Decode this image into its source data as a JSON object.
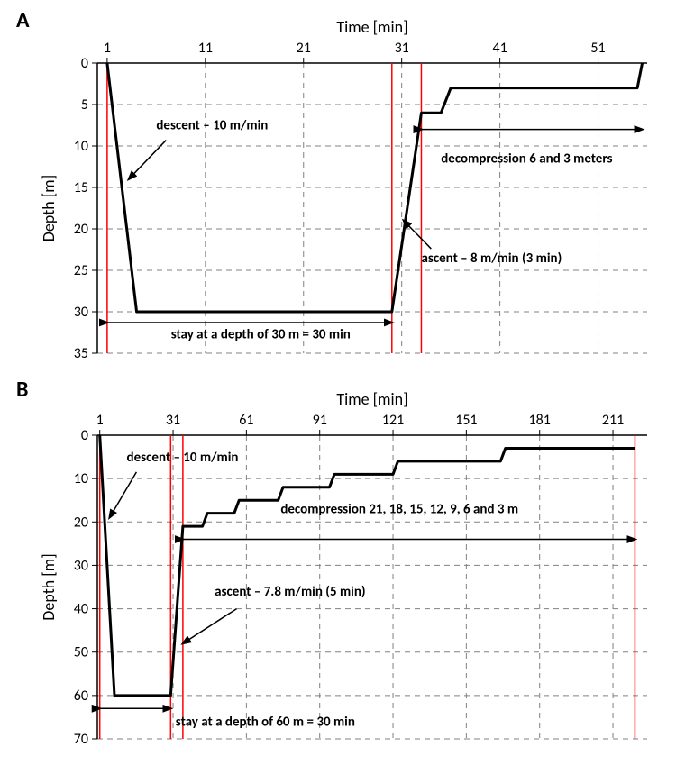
{
  "global": {
    "background_color": "#ffffff",
    "font_family": "Calibri, Arial, sans-serif",
    "grid_color": "#808080",
    "axis_color": "#000000",
    "profile_color": "#000000",
    "marker_color": "#ff0000",
    "text_color": "#000000",
    "panel_label_fontsize": 24,
    "axis_title_fontsize": 18,
    "tick_fontsize": 16,
    "annotation_fontsize": 15
  },
  "panelA": {
    "label": "A",
    "x_title": "Time [min]",
    "y_title": "Depth [m]",
    "x_ticks": [
      1,
      11,
      21,
      31,
      41,
      51
    ],
    "y_ticks": [
      0,
      5,
      10,
      15,
      20,
      25,
      30,
      35
    ],
    "xlim": [
      0,
      56
    ],
    "ylim": [
      0,
      35
    ],
    "profile": [
      {
        "t": 1,
        "d": 0
      },
      {
        "t": 4,
        "d": 30
      },
      {
        "t": 30,
        "d": 30
      },
      {
        "t": 33,
        "d": 6
      },
      {
        "t": 35,
        "d": 6
      },
      {
        "t": 36,
        "d": 3
      },
      {
        "t": 55,
        "d": 3
      },
      {
        "t": 55.5,
        "d": 0
      }
    ],
    "vmarkers": [
      1,
      30,
      33
    ],
    "annotations": {
      "descent_label": "descent – 10 m/min",
      "stay_label": "stay at a depth of 30 m = 30 min",
      "ascent_label": "ascent – 8 m/min (3 min)",
      "decomp_label": "decompression 6 and 3 meters"
    },
    "profile_linewidth": 3,
    "marker_linewidth": 1.5,
    "grid_dash": "6,5",
    "grid_linewidth": 1,
    "axis_linewidth": 1.5
  },
  "panelB": {
    "label": "B",
    "x_title": "Time [min]",
    "y_title": "Depth [m]",
    "x_ticks": [
      1,
      31,
      61,
      91,
      121,
      151,
      181,
      211
    ],
    "y_ticks": [
      0,
      10,
      20,
      30,
      40,
      50,
      60,
      70
    ],
    "xlim": [
      0,
      225
    ],
    "ylim": [
      0,
      70
    ],
    "profile": [
      {
        "t": 1,
        "d": 0
      },
      {
        "t": 7,
        "d": 60
      },
      {
        "t": 30,
        "d": 60
      },
      {
        "t": 35,
        "d": 21
      },
      {
        "t": 43,
        "d": 21
      },
      {
        "t": 45,
        "d": 18
      },
      {
        "t": 56,
        "d": 18
      },
      {
        "t": 58,
        "d": 15
      },
      {
        "t": 74,
        "d": 15
      },
      {
        "t": 76,
        "d": 12
      },
      {
        "t": 95,
        "d": 12
      },
      {
        "t": 97,
        "d": 9
      },
      {
        "t": 121,
        "d": 9
      },
      {
        "t": 123,
        "d": 6
      },
      {
        "t": 165,
        "d": 6
      },
      {
        "t": 167,
        "d": 3
      },
      {
        "t": 220,
        "d": 3
      }
    ],
    "vmarkers": [
      1,
      30,
      35,
      220
    ],
    "annotations": {
      "descent_label": "descent – 10 m/min",
      "stay_label": "stay at a depth of 60 m = 30 min",
      "ascent_label": "ascent – 7.8 m/min (5 min)",
      "decomp_label": "decompression 21, 18, 15, 12, 9, 6 and 3 m"
    },
    "profile_linewidth": 3,
    "marker_linewidth": 1.5,
    "grid_dash": "6,5",
    "grid_linewidth": 1,
    "axis_linewidth": 1.5
  }
}
